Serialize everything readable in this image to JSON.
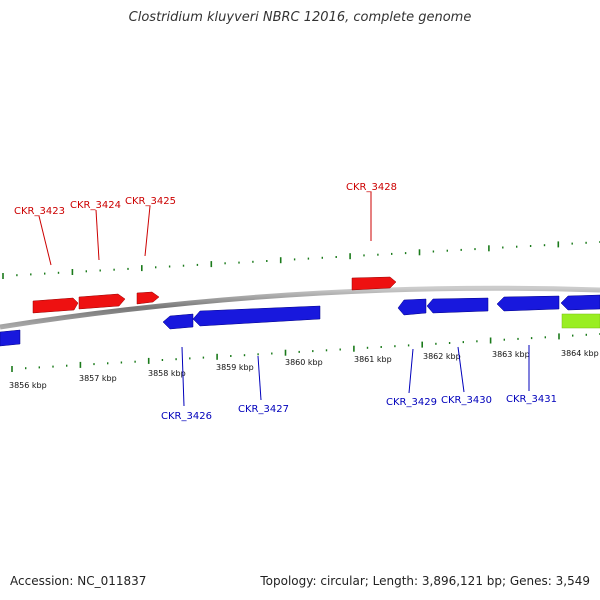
{
  "title": "Clostridium kluyveri NBRC 12016, complete genome",
  "footer": {
    "accession": "Accession: NC_011837",
    "stats": "Topology: circular; Length: 3,896,121 bp; Genes: 3,549"
  },
  "colors": {
    "forward_gene": "#ee1111",
    "reverse_gene": "#1818dd",
    "other_feature": "#99ee22",
    "backbone": "#888888",
    "ticks": "#1a7a1a",
    "forward_label": "#cc0000",
    "reverse_label": "#0000bb"
  },
  "scale_labels": [
    "3856 kbp",
    "3857 kbp",
    "3858 kbp",
    "3859 kbp",
    "3860 kbp",
    "3861 kbp",
    "3862 kbp",
    "3863 kbp",
    "3864 kbp"
  ],
  "forward_gene_labels": [
    "CKR_3423",
    "CKR_3424",
    "CKR_3425",
    "CKR_3428"
  ],
  "reverse_gene_labels": [
    "CKR_3426",
    "CKR_3427",
    "CKR_3429",
    "CKR_3430",
    "CKR_3431"
  ]
}
